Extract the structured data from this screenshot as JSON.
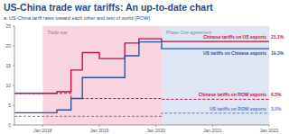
{
  "chart_data": {
    "type": "line",
    "title": "US-China trade war tariffs: An up-to-date chart",
    "subtitle": "a. US-China tariff rates toward each other and rest of world (ROW)",
    "x": [
      2017.5,
      2018.1,
      2018.25,
      2018.5,
      2018.7,
      2019.0,
      2019.45,
      2019.7,
      2020.1,
      2022.0
    ],
    "xlim": [
      2017.5,
      2022.0
    ],
    "xticks": [
      {
        "value": 2018,
        "label": "Jan 2018"
      },
      {
        "value": 2019,
        "label": "Jan 2019"
      },
      {
        "value": 2020,
        "label": "Jan 2020"
      },
      {
        "value": 2021,
        "label": "Jan 2021"
      },
      {
        "value": 2022,
        "label": "Jan 2022"
      }
    ],
    "ylim": [
      0,
      25
    ],
    "yticks": [
      0,
      5,
      10,
      15,
      20,
      25
    ],
    "grid": true,
    "periods": [
      {
        "label": "Trade war",
        "start": 2018.0,
        "end": 2020.1,
        "color": "#f7d4e0"
      },
      {
        "label": "Phase One agreement",
        "start": 2020.1,
        "end": 2022.0,
        "color": "#dde6f2"
      }
    ],
    "series": [
      {
        "name": "Chinese tariffs on US exports",
        "color": "#c0134b",
        "line_style": "solid",
        "end_label": "21.1%",
        "values": [
          8.0,
          8.0,
          8.4,
          13.9,
          18.3,
          16.8,
          20.7,
          21.8,
          21.1,
          21.1
        ]
      },
      {
        "name": "US tariffs on Chinese exports",
        "color": "#2f5597",
        "line_style": "solid",
        "end_label": "19.3%",
        "values": [
          3.1,
          3.1,
          3.8,
          6.7,
          12.0,
          12.0,
          17.5,
          21.0,
          19.3,
          19.3
        ]
      },
      {
        "name": "Chinese tariffs on ROW exports",
        "color": "#c0134b",
        "line_style": "dashed",
        "end_label": "6.5%",
        "values": [
          8.0,
          8.0,
          8.0,
          6.7,
          6.7,
          6.7,
          6.7,
          6.7,
          6.5,
          6.5
        ]
      },
      {
        "name": "US tariffs on ROW exports",
        "color": "#5b7fc4",
        "line_style": "dashed",
        "end_label": "3.0%",
        "values": [
          2.2,
          2.2,
          2.2,
          2.2,
          2.2,
          2.2,
          2.2,
          2.2,
          3.0,
          3.0
        ]
      }
    ]
  }
}
